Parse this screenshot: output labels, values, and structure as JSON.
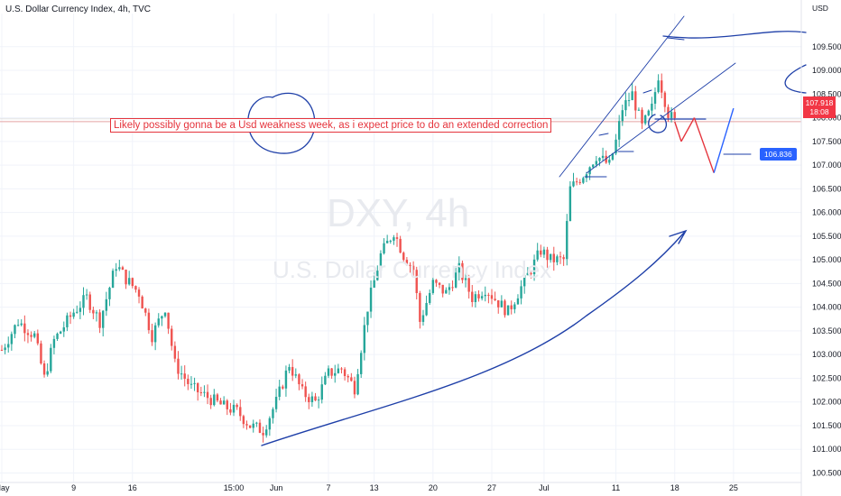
{
  "header": {
    "title": "U.S. Dollar Currency Index, 4h, TVC"
  },
  "watermark": {
    "symbol": "DXY, 4h",
    "name": "U.S. Dollar Currency Index"
  },
  "axis": {
    "currency": "USD"
  },
  "annotation": {
    "text": "Likely possibly gonna be a Usd weakness week, as i expect price to do an extended correction"
  },
  "price_tag": {
    "value": "107.918",
    "countdown": "18:08"
  },
  "target_tag": {
    "value": "106.836"
  },
  "colors": {
    "up": "#26a69a",
    "down": "#ef5350",
    "drawing": "#1e3fa8",
    "red_note": "#e5343c",
    "grid": "#f0f3fa"
  },
  "chart_data": {
    "type": "candlestick",
    "title": "U.S. Dollar Currency Index, 4h, TVC",
    "ylabel": "USD",
    "ylim": [
      100.3,
      110.2
    ],
    "yticks": [
      "109.500",
      "109.000",
      "108.500",
      "108.000",
      "107.500",
      "107.000",
      "106.500",
      "106.000",
      "105.500",
      "105.000",
      "104.500",
      "104.000",
      "103.500",
      "103.000",
      "102.500",
      "102.000",
      "101.500",
      "101.000",
      "100.500"
    ],
    "xticks": [
      {
        "label": "May",
        "index": 0
      },
      {
        "label": "9",
        "index": 22
      },
      {
        "label": "16",
        "index": 40
      },
      {
        "label": "15:00",
        "index": 71
      },
      {
        "label": "Jun",
        "index": 84
      },
      {
        "label": "7",
        "index": 100
      },
      {
        "label": "13",
        "index": 114
      },
      {
        "label": "20",
        "index": 132
      },
      {
        "label": "27",
        "index": 150
      },
      {
        "label": "Jul",
        "index": 166
      },
      {
        "label": "11",
        "index": 188
      },
      {
        "label": "18",
        "index": 206
      },
      {
        "label": "25",
        "index": 224
      }
    ],
    "n_slots": 240,
    "close_path": [
      [
        0,
        103.1
      ],
      [
        5,
        103.7
      ],
      [
        10,
        103.4
      ],
      [
        13,
        102.5
      ],
      [
        16,
        103.3
      ],
      [
        22,
        103.9
      ],
      [
        26,
        104.2
      ],
      [
        30,
        103.7
      ],
      [
        35,
        104.9
      ],
      [
        38,
        104.6
      ],
      [
        42,
        104.3
      ],
      [
        46,
        103.4
      ],
      [
        50,
        104.0
      ],
      [
        53,
        102.8
      ],
      [
        58,
        102.3
      ],
      [
        63,
        102.1
      ],
      [
        68,
        101.9
      ],
      [
        72,
        101.8
      ],
      [
        76,
        101.5
      ],
      [
        80,
        101.4
      ],
      [
        84,
        102.0
      ],
      [
        88,
        102.8
      ],
      [
        92,
        102.2
      ],
      [
        96,
        102.0
      ],
      [
        100,
        102.6
      ],
      [
        104,
        102.7
      ],
      [
        108,
        102.3
      ],
      [
        112,
        104.0
      ],
      [
        116,
        105.1
      ],
      [
        120,
        105.6
      ],
      [
        123,
        105.1
      ],
      [
        126,
        104.8
      ],
      [
        128,
        103.7
      ],
      [
        132,
        104.5
      ],
      [
        136,
        104.3
      ],
      [
        140,
        104.8
      ],
      [
        144,
        104.2
      ],
      [
        148,
        104.4
      ],
      [
        152,
        104.1
      ],
      [
        155,
        103.9
      ],
      [
        158,
        104.3
      ],
      [
        162,
        104.8
      ],
      [
        165,
        105.2
      ],
      [
        168,
        105.0
      ],
      [
        172,
        105.0
      ],
      [
        174,
        106.5
      ],
      [
        178,
        106.8
      ],
      [
        182,
        107.2
      ],
      [
        186,
        107.0
      ],
      [
        188,
        107.5
      ],
      [
        190,
        108.2
      ],
      [
        193,
        108.5
      ],
      [
        196,
        107.8
      ],
      [
        199,
        108.2
      ],
      [
        201,
        108.9
      ],
      [
        204,
        108.1
      ],
      [
        206,
        107.918
      ]
    ],
    "projection": [
      [
        206,
        107.918
      ],
      [
        208,
        107.5
      ],
      [
        212,
        108.0
      ],
      [
        218,
        106.836
      ],
      [
        224,
        108.2
      ]
    ],
    "current_price": 107.918,
    "target_price": 106.836
  }
}
